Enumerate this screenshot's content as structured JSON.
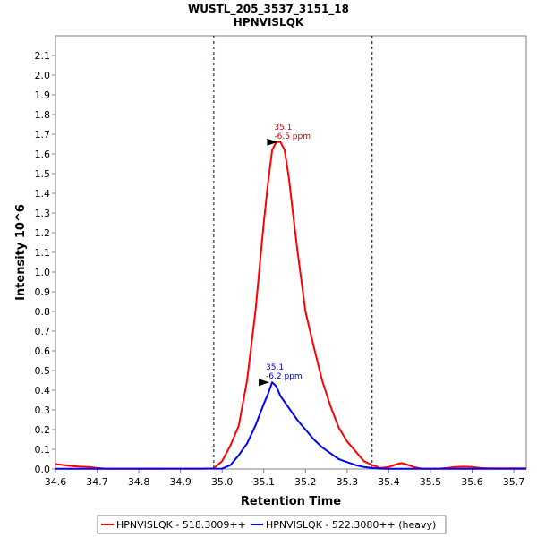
{
  "chart_data": {
    "type": "line",
    "title": "WUSTL_205_3537_3151_18",
    "subtitle": "HPNVISLQK",
    "xlabel": "Retention Time",
    "ylabel": "Intensity 10^6",
    "xlim": [
      34.6,
      35.73
    ],
    "ylim": [
      0,
      2.2
    ],
    "x_ticks": [
      "34.6",
      "34.7",
      "34.8",
      "34.9",
      "35.0",
      "35.1",
      "35.2",
      "35.3",
      "35.4",
      "35.5",
      "35.6",
      "35.7"
    ],
    "y_ticks": [
      "0.0",
      "0.1",
      "0.2",
      "0.3",
      "0.4",
      "0.5",
      "0.6",
      "0.7",
      "0.8",
      "0.9",
      "1.0",
      "1.1",
      "1.2",
      "1.3",
      "1.4",
      "1.5",
      "1.6",
      "1.7",
      "1.8",
      "1.9",
      "2.0",
      "2.1"
    ],
    "integration_boundaries": [
      34.98,
      35.36
    ],
    "legend_position": "bottom",
    "grid": false,
    "series": [
      {
        "name": "HPNVISLQK - 518.3009++",
        "color": "#ff0000",
        "x": [
          34.6,
          34.62,
          34.64,
          34.66,
          34.68,
          34.7,
          34.72,
          34.8,
          34.9,
          34.95,
          34.98,
          35.0,
          35.02,
          35.04,
          35.06,
          35.08,
          35.1,
          35.11,
          35.12,
          35.13,
          35.14,
          35.15,
          35.16,
          35.17,
          35.18,
          35.2,
          35.22,
          35.24,
          35.26,
          35.28,
          35.3,
          35.32,
          35.34,
          35.36,
          35.38,
          35.4,
          35.42,
          35.43,
          35.44,
          35.46,
          35.48,
          35.5,
          35.52,
          35.54,
          35.56,
          35.58,
          35.6,
          35.62,
          35.64,
          35.66,
          35.68,
          35.7,
          35.73
        ],
        "y": [
          0.025,
          0.02,
          0.015,
          0.012,
          0.01,
          0.005,
          0.002,
          0.002,
          0.002,
          0.002,
          0.003,
          0.04,
          0.12,
          0.22,
          0.45,
          0.8,
          1.25,
          1.45,
          1.62,
          1.66,
          1.66,
          1.62,
          1.48,
          1.3,
          1.12,
          0.8,
          0.62,
          0.45,
          0.32,
          0.21,
          0.14,
          0.09,
          0.04,
          0.02,
          0.005,
          0.01,
          0.025,
          0.03,
          0.025,
          0.01,
          0.002,
          0.002,
          0.002,
          0.005,
          0.01,
          0.012,
          0.01,
          0.005,
          0.003,
          0.003,
          0.003,
          0.003,
          0.003
        ]
      },
      {
        "name": "HPNVISLQK - 522.3080++ (heavy)",
        "color": "#0000ff",
        "x": [
          34.6,
          34.8,
          35.0,
          35.02,
          35.04,
          35.06,
          35.08,
          35.1,
          35.11,
          35.12,
          35.13,
          35.14,
          35.16,
          35.18,
          35.2,
          35.22,
          35.24,
          35.26,
          35.28,
          35.3,
          35.32,
          35.34,
          35.36,
          35.38,
          35.4,
          35.5,
          35.6,
          35.73
        ],
        "y": [
          0.001,
          0.001,
          0.002,
          0.02,
          0.07,
          0.13,
          0.22,
          0.33,
          0.38,
          0.44,
          0.42,
          0.37,
          0.31,
          0.25,
          0.2,
          0.15,
          0.11,
          0.08,
          0.05,
          0.035,
          0.02,
          0.01,
          0.005,
          0.002,
          0.001,
          0.001,
          0.001,
          0.001
        ]
      }
    ],
    "annotations": [
      {
        "series": 0,
        "x": 35.14,
        "y": 1.66,
        "line1": "35.1",
        "line2": "-6.5 ppm",
        "color": "#cc0000"
      },
      {
        "series": 1,
        "x": 35.12,
        "y": 0.44,
        "line1": "35.1",
        "line2": "-6.2 ppm",
        "color": "#0000cc"
      }
    ]
  }
}
